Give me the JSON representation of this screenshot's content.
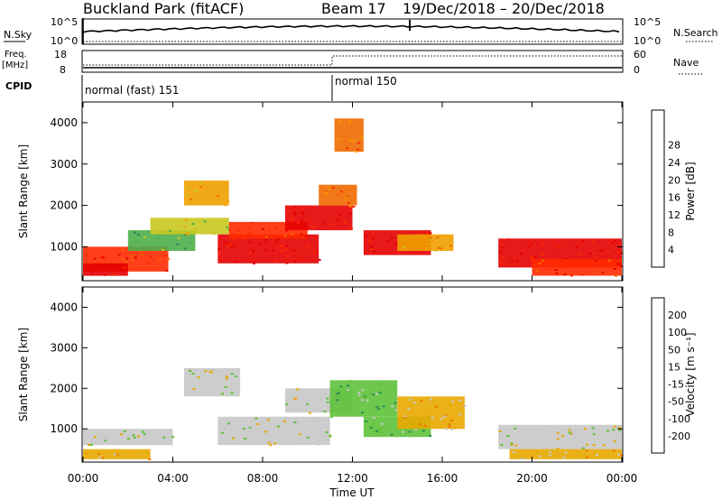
{
  "header": {
    "station": "Buckland Park (fitACF)",
    "beam": "Beam 17",
    "date_range": "19/Dec/2018 – 20/Dec/2018"
  },
  "strip": {
    "nsky_label": "N.Sky",
    "nsky_ticks": [
      "10^5",
      "10^0"
    ],
    "nsearch_label": "N.Search",
    "nsearch_ticks": [
      "10^5",
      "10^0"
    ],
    "freq_label": "Freq.",
    "freq_unit": "[MHz]",
    "freq_ticks": [
      "18",
      "8"
    ],
    "nave_label": "Nave",
    "nave_ticks": [
      "60",
      "0"
    ],
    "cpid_label": "CPID",
    "cpid_modes": [
      "normal (fast) 151",
      "normal 150"
    ]
  },
  "x_axis": {
    "label": "Time UT",
    "ticks": [
      "00:00",
      "04:00",
      "08:00",
      "12:00",
      "16:00",
      "20:00",
      "00:00"
    ]
  },
  "y_axis": {
    "label": "Slant Range [km]",
    "ticks": [
      "1000",
      "2000",
      "3000",
      "4000"
    ]
  },
  "power_bar": {
    "label": "Power [dB]",
    "ticks": [
      "4",
      "8",
      "12",
      "16",
      "20",
      "24",
      "28"
    ],
    "colors": [
      "#1432ff",
      "#2a5aa8",
      "#2e8a5a",
      "#4fae4a",
      "#c9c820",
      "#f0a000",
      "#f06a00",
      "#ff2a00",
      "#e60000"
    ]
  },
  "velocity_bar": {
    "label": "Velocity [m s⁻¹]",
    "ticks": [
      "200",
      "100",
      "50",
      "15",
      "-15",
      "-50",
      "-100",
      "-200"
    ],
    "colors": [
      "#1a2ad0",
      "#2a6aa0",
      "#2f8a50",
      "#5ec23a",
      "#c8c8c8",
      "#e8a800",
      "#f07a00",
      "#ff3a00",
      "#ee0000"
    ]
  },
  "chart_data": [
    {
      "type": "heatmap",
      "name": "power",
      "x_range_hours": [
        0,
        24
      ],
      "y_range_km": [
        180,
        4500
      ],
      "bands": [
        {
          "t0": 0.0,
          "t1": 3.8,
          "r0": 400,
          "r1": 1000,
          "level": 7
        },
        {
          "t0": 0.0,
          "t1": 2.0,
          "r0": 300,
          "r1": 600,
          "level": 8
        },
        {
          "t0": 2.0,
          "t1": 5.0,
          "r0": 900,
          "r1": 1400,
          "level": 3
        },
        {
          "t0": 3.0,
          "t1": 6.5,
          "r0": 1300,
          "r1": 1700,
          "level": 4
        },
        {
          "t0": 4.5,
          "t1": 6.5,
          "r0": 2000,
          "r1": 2600,
          "level": 5
        },
        {
          "t0": 6.0,
          "t1": 10.5,
          "r0": 600,
          "r1": 1300,
          "level": 8
        },
        {
          "t0": 6.5,
          "t1": 10.0,
          "r0": 1200,
          "r1": 1600,
          "level": 7
        },
        {
          "t0": 9.0,
          "t1": 12.0,
          "r0": 1400,
          "r1": 2000,
          "level": 8
        },
        {
          "t0": 10.5,
          "t1": 12.2,
          "r0": 2000,
          "r1": 2500,
          "level": 6
        },
        {
          "t0": 11.2,
          "t1": 12.5,
          "r0": 3300,
          "r1": 4100,
          "level": 6
        },
        {
          "t0": 12.5,
          "t1": 15.5,
          "r0": 800,
          "r1": 1400,
          "level": 8
        },
        {
          "t0": 14.0,
          "t1": 16.5,
          "r0": 900,
          "r1": 1300,
          "level": 5
        },
        {
          "t0": 18.5,
          "t1": 24.0,
          "r0": 500,
          "r1": 1200,
          "level": 8
        },
        {
          "t0": 20.0,
          "t1": 24.0,
          "r0": 300,
          "r1": 700,
          "level": 7
        }
      ]
    },
    {
      "type": "heatmap",
      "name": "velocity",
      "x_range_hours": [
        0,
        24
      ],
      "y_range_km": [
        180,
        4500
      ],
      "bands": [
        {
          "t0": 0.0,
          "t1": 4.0,
          "r0": 600,
          "r1": 1000,
          "level": 4
        },
        {
          "t0": 0.0,
          "t1": 3.0,
          "r0": 250,
          "r1": 500,
          "level": 5
        },
        {
          "t0": 4.5,
          "t1": 7.0,
          "r0": 1800,
          "r1": 2500,
          "level": 4
        },
        {
          "t0": 6.0,
          "t1": 11.0,
          "r0": 600,
          "r1": 1300,
          "level": 4
        },
        {
          "t0": 9.0,
          "t1": 12.0,
          "r0": 1400,
          "r1": 2000,
          "level": 4
        },
        {
          "t0": 11.0,
          "t1": 14.0,
          "r0": 1300,
          "r1": 2200,
          "level": 3
        },
        {
          "t0": 12.5,
          "t1": 15.5,
          "r0": 800,
          "r1": 1300,
          "level": 3
        },
        {
          "t0": 14.0,
          "t1": 17.0,
          "r0": 1000,
          "r1": 1800,
          "level": 5
        },
        {
          "t0": 18.5,
          "t1": 24.0,
          "r0": 500,
          "r1": 1100,
          "level": 4
        },
        {
          "t0": 19.0,
          "t1": 24.0,
          "r0": 250,
          "r1": 500,
          "level": 5
        }
      ]
    }
  ]
}
